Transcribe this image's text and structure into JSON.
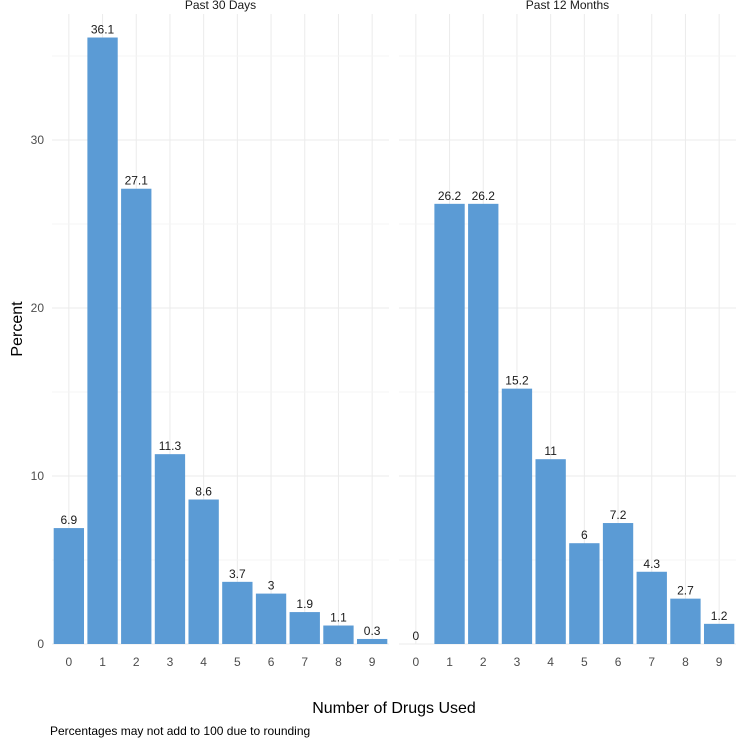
{
  "chart_data": {
    "type": "bar",
    "xlabel": "Number of Drugs Used",
    "ylabel": "Percent",
    "ylim": [
      0,
      37.5
    ],
    "yticks": [
      0,
      10,
      20,
      30
    ],
    "caption": "Percentages may not add to 100 due to rounding",
    "grid": true,
    "bar_color": "#5b9bd5",
    "categories": [
      "0",
      "1",
      "2",
      "3",
      "4",
      "5",
      "6",
      "7",
      "8",
      "9"
    ],
    "panels": [
      {
        "title": "Past 30 Days",
        "values": [
          6.9,
          36.1,
          27.1,
          11.3,
          8.6,
          3.7,
          3,
          1.9,
          1.1,
          0.3
        ],
        "labels": [
          "6.9",
          "36.1",
          "27.1",
          "11.3",
          "8.6",
          "3.7",
          "3",
          "1.9",
          "1.1",
          "0.3"
        ]
      },
      {
        "title": "Past 12 Months",
        "values": [
          0,
          26.2,
          26.2,
          15.2,
          11,
          6,
          7.2,
          4.3,
          2.7,
          1.2
        ],
        "labels": [
          "0",
          "26.2",
          "26.2",
          "15.2",
          "11",
          "6",
          "7.2",
          "4.3",
          "2.7",
          "1.2"
        ]
      }
    ]
  }
}
